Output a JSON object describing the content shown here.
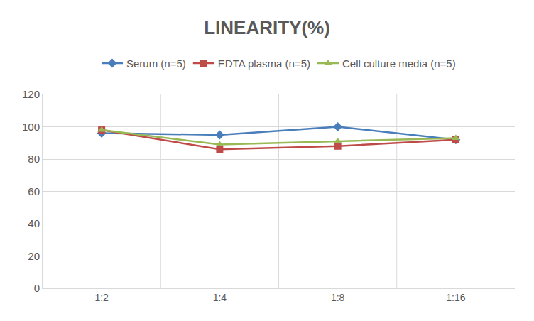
{
  "chart_data": {
    "type": "line",
    "title": "LINEARITY(%)",
    "categories": [
      "1:2",
      "1:4",
      "1:8",
      "1:16"
    ],
    "series": [
      {
        "name": "Serum (n=5)",
        "color": "#4a7ebb",
        "marker": "diamond",
        "values": [
          96,
          95,
          100,
          92
        ]
      },
      {
        "name": "EDTA plasma (n=5)",
        "color": "#be4b48",
        "marker": "square",
        "values": [
          98,
          86,
          88,
          92
        ]
      },
      {
        "name": "Cell culture media (n=5)",
        "color": "#98b954",
        "marker": "triangle",
        "values": [
          98,
          89,
          91,
          93
        ]
      }
    ],
    "ylim": [
      0,
      120
    ],
    "yticks": [
      0,
      20,
      40,
      60,
      80,
      100,
      120
    ],
    "grid": true,
    "legend": "top"
  }
}
